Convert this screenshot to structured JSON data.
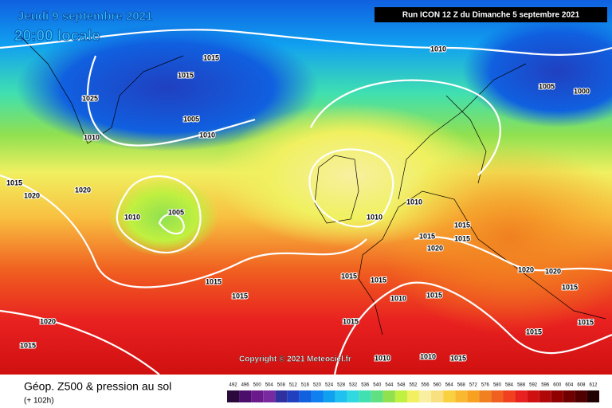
{
  "header": {
    "date": "Jeudi 9 septembre 2021",
    "time": "20:00 locale",
    "run": "Run ICON 12 Z du Dimanche 5 septembre 2021"
  },
  "copyright": "Copyright © 2021 Meteociel.fr",
  "footer": {
    "title": "Géop. Z500 & pression au sol",
    "lead": "(+ 102h)"
  },
  "legend": {
    "levels": [
      492,
      496,
      500,
      504,
      508,
      512,
      516,
      520,
      524,
      528,
      532,
      536,
      540,
      544,
      548,
      552,
      556,
      560,
      564,
      568,
      572,
      576,
      580,
      584,
      588,
      592,
      596,
      600,
      604,
      608,
      612
    ],
    "colors": [
      "#2a0a3a",
      "#4b0f6b",
      "#6a1a8a",
      "#7a2aa0",
      "#3030a0",
      "#2040c0",
      "#1060e0",
      "#1080f0",
      "#10a0f0",
      "#20c0f0",
      "#30d8e0",
      "#40e0b0",
      "#60e080",
      "#90e050",
      "#c0f040",
      "#f0f060",
      "#f8f0a0",
      "#f8e080",
      "#f8d040",
      "#f8b830",
      "#f8a020",
      "#f08020",
      "#f06020",
      "#f04020",
      "#e82020",
      "#d01010",
      "#b00808",
      "#900000",
      "#700000",
      "#500000",
      "#200000"
    ]
  },
  "isobar_labels": [
    1015,
    1010,
    1015,
    1025,
    1005,
    1010,
    1010,
    1005,
    1000,
    1015,
    1020,
    1020,
    1010,
    1005,
    1010,
    1010,
    1015,
    1015,
    1020,
    1015,
    1020,
    1020,
    1015,
    1015,
    1015,
    1015,
    1010,
    1015,
    1015,
    1015,
    1020,
    1015,
    1010,
    1010,
    1015,
    1015,
    1015
  ]
}
